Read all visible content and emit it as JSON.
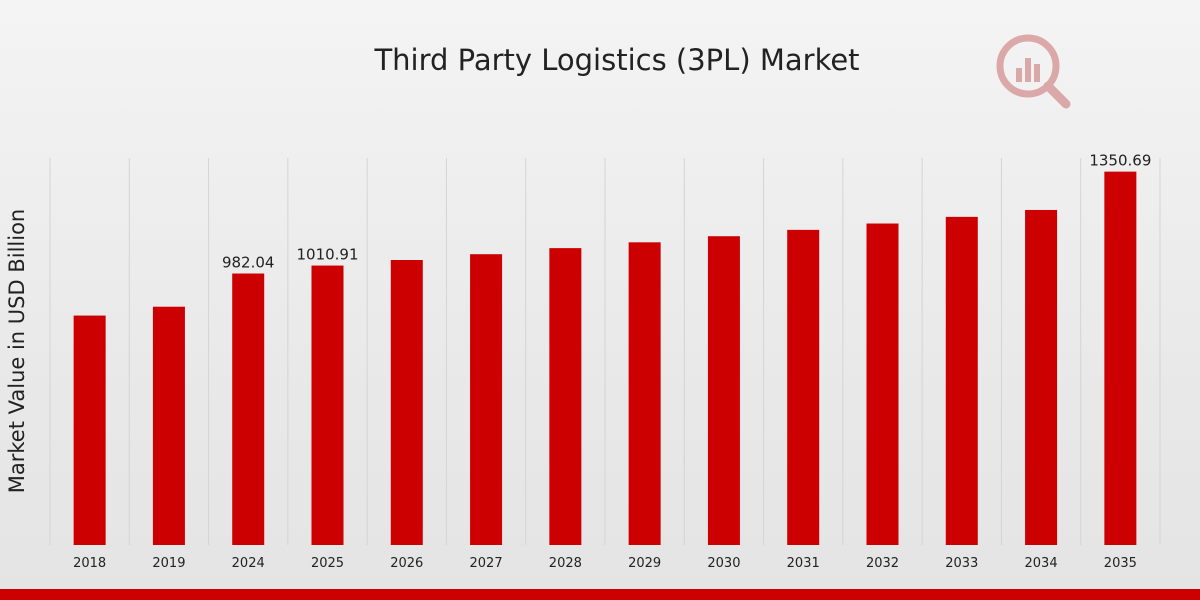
{
  "colors": {
    "bar": "#cc0000",
    "bottom_strip": "#cc0000",
    "watermark": "#b22222"
  },
  "watermark_icon": "market-research-logo-icon",
  "chart_data": {
    "type": "bar",
    "title": "Third Party Logistics (3PL) Market",
    "xlabel": "",
    "ylabel": "Market Value in USD Billion",
    "categories": [
      "2018",
      "2019",
      "2024",
      "2025",
      "2026",
      "2027",
      "2028",
      "2029",
      "2030",
      "2031",
      "2032",
      "2033",
      "2034",
      "2035"
    ],
    "values": [
      830,
      862,
      982.04,
      1010.91,
      1031,
      1052,
      1074,
      1095,
      1117,
      1140,
      1163,
      1187,
      1212,
      1350.69
    ],
    "data_labels": [
      null,
      null,
      "982.04",
      "1010.91",
      null,
      null,
      null,
      null,
      null,
      null,
      null,
      null,
      null,
      "1350.69"
    ],
    "ylim": [
      0,
      1400
    ],
    "grid": true,
    "legend": "none"
  }
}
